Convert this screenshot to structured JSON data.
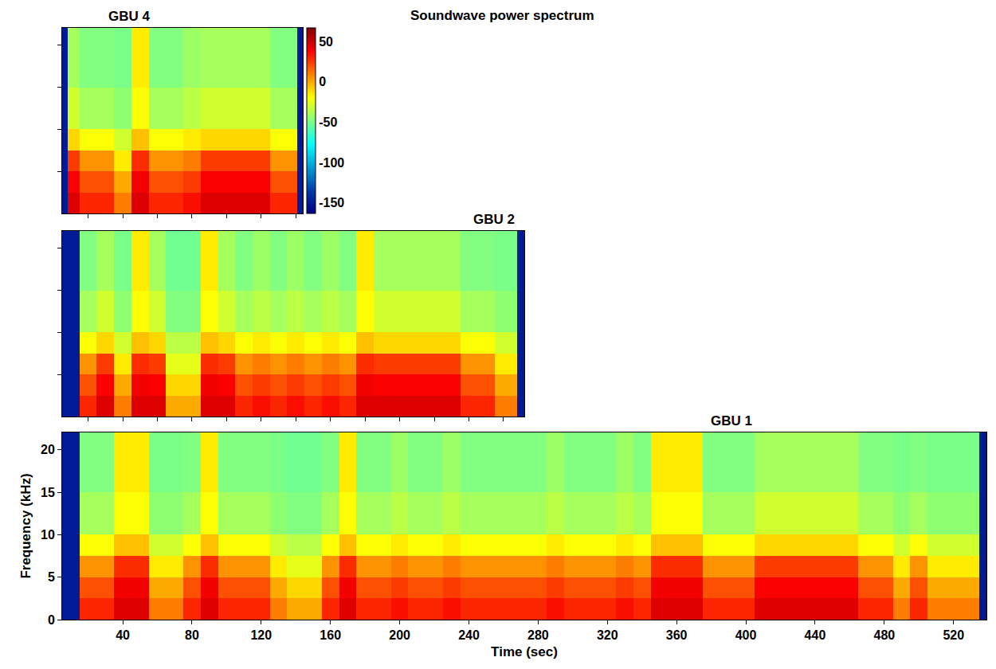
{
  "title": "Soundwave power spectrum",
  "chart_data": [
    {
      "type": "heatmap",
      "title": "GBU 4",
      "xlim": [
        5,
        144
      ],
      "ylim": [
        0,
        22.05
      ],
      "xticks": [
        20,
        40,
        60,
        80,
        100,
        120,
        140
      ],
      "yticks": [
        5,
        10,
        15,
        20
      ],
      "tick_labels": false,
      "grid": false,
      "colorbar": {
        "range": [
          -163,
          67
        ],
        "ticks": [
          50,
          0,
          -50,
          -100,
          -150
        ]
      },
      "time_edges": [
        5,
        8,
        15,
        25,
        35,
        45,
        55,
        65,
        75,
        85,
        95,
        105,
        115,
        125,
        135,
        141,
        144
      ],
      "frequency_edges": [
        0,
        2.5,
        5,
        7.5,
        10,
        15,
        22.05
      ],
      "cells": [
        [
          -150,
          45,
          30,
          30,
          10,
          45,
          30,
          30,
          35,
          45,
          45,
          45,
          45,
          30,
          30,
          -150
        ],
        [
          -150,
          38,
          20,
          20,
          0,
          40,
          20,
          20,
          25,
          38,
          38,
          38,
          38,
          20,
          20,
          -150
        ],
        [
          -150,
          25,
          5,
          5,
          -15,
          28,
          5,
          5,
          10,
          25,
          25,
          25,
          25,
          5,
          5,
          -150
        ],
        [
          -150,
          -10,
          -20,
          -20,
          -30,
          -5,
          -20,
          -20,
          -15,
          -10,
          -10,
          -10,
          -10,
          -20,
          -20,
          -150
        ],
        [
          -150,
          -30,
          -40,
          -40,
          -45,
          -20,
          -40,
          -40,
          -35,
          -30,
          -30,
          -30,
          -30,
          -40,
          -40,
          -150
        ],
        [
          -150,
          -40,
          -48,
          -48,
          -50,
          -15,
          -48,
          -48,
          -42,
          -40,
          -40,
          -40,
          -40,
          -48,
          -48,
          -150
        ]
      ]
    },
    {
      "type": "heatmap",
      "title": "GBU 2",
      "xlim": [
        5,
        272
      ],
      "ylim": [
        0,
        22.05
      ],
      "xticks": [
        20,
        40,
        60,
        80,
        100,
        120,
        140,
        160,
        180,
        200,
        220,
        240,
        260
      ],
      "yticks": [
        5,
        10,
        15,
        20
      ],
      "tick_labels": false,
      "grid": false,
      "time_edges": [
        5,
        15,
        25,
        35,
        45,
        55,
        65,
        75,
        85,
        95,
        105,
        115,
        125,
        135,
        145,
        155,
        165,
        175,
        185,
        195,
        205,
        215,
        225,
        235,
        245,
        255,
        265,
        268,
        272
      ],
      "frequency_edges": [
        0,
        2.5,
        5,
        7.5,
        10,
        15,
        22.05
      ],
      "cells": [
        [
          -150,
          30,
          45,
          10,
          45,
          45,
          0,
          0,
          45,
          45,
          30,
          35,
          30,
          35,
          30,
          35,
          30,
          45,
          45,
          45,
          45,
          45,
          45,
          30,
          30,
          10,
          10,
          -150
        ],
        [
          -150,
          20,
          38,
          0,
          40,
          38,
          -10,
          -10,
          40,
          38,
          20,
          25,
          20,
          25,
          20,
          25,
          20,
          40,
          38,
          38,
          38,
          38,
          38,
          20,
          20,
          0,
          0,
          -150
        ],
        [
          -150,
          5,
          25,
          -15,
          28,
          25,
          -25,
          -25,
          28,
          25,
          5,
          10,
          5,
          10,
          5,
          10,
          5,
          28,
          25,
          25,
          25,
          25,
          25,
          5,
          5,
          -15,
          -15,
          -150
        ],
        [
          -150,
          -20,
          -10,
          -30,
          -5,
          -10,
          -35,
          -35,
          -5,
          -10,
          -20,
          -15,
          -20,
          -15,
          -20,
          -15,
          -20,
          -5,
          -10,
          -10,
          -10,
          -10,
          -10,
          -20,
          -20,
          -30,
          -30,
          -150
        ],
        [
          -150,
          -40,
          -30,
          -45,
          -20,
          -30,
          -48,
          -48,
          -20,
          -30,
          -40,
          -35,
          -40,
          -35,
          -40,
          -35,
          -40,
          -20,
          -30,
          -30,
          -30,
          -30,
          -30,
          -40,
          -40,
          -45,
          -45,
          -150
        ],
        [
          -150,
          -48,
          -40,
          -50,
          -15,
          -40,
          -52,
          -52,
          -15,
          -40,
          -48,
          -42,
          -48,
          -42,
          -48,
          -42,
          -48,
          -15,
          -40,
          -40,
          -40,
          -40,
          -40,
          -48,
          -48,
          -50,
          -50,
          -150
        ]
      ]
    },
    {
      "type": "heatmap",
      "title": "GBU 1",
      "xlabel": "Time (sec)",
      "ylabel": "Frequency (kHz)",
      "xlim": [
        5,
        539
      ],
      "ylim": [
        0,
        22.05
      ],
      "xticks": [
        40,
        80,
        120,
        160,
        200,
        240,
        280,
        320,
        360,
        400,
        440,
        480,
        520
      ],
      "yticks": [
        0,
        5,
        10,
        15,
        20
      ],
      "grid": false,
      "time_edges": [
        5,
        15,
        25,
        35,
        45,
        55,
        65,
        75,
        85,
        95,
        105,
        115,
        125,
        135,
        145,
        155,
        165,
        175,
        185,
        195,
        205,
        215,
        225,
        235,
        245,
        255,
        265,
        275,
        285,
        295,
        305,
        315,
        325,
        335,
        345,
        355,
        365,
        375,
        385,
        395,
        405,
        415,
        425,
        435,
        445,
        455,
        465,
        475,
        485,
        495,
        505,
        515,
        525,
        535,
        539
      ],
      "frequency_edges": [
        0,
        2.5,
        5,
        7.5,
        10,
        15,
        22.05
      ],
      "cells": [
        [
          -150,
          30,
          30,
          45,
          45,
          10,
          10,
          30,
          45,
          30,
          30,
          30,
          10,
          0,
          0,
          30,
          45,
          30,
          30,
          35,
          30,
          30,
          35,
          30,
          30,
          30,
          30,
          30,
          35,
          30,
          30,
          30,
          35,
          30,
          45,
          45,
          45,
          30,
          30,
          30,
          45,
          45,
          45,
          45,
          45,
          45,
          30,
          30,
          10,
          30,
          10,
          10,
          10,
          -150
        ],
        [
          -150,
          20,
          20,
          40,
          40,
          0,
          0,
          20,
          40,
          20,
          20,
          20,
          0,
          -10,
          -10,
          20,
          40,
          20,
          20,
          25,
          20,
          20,
          25,
          20,
          20,
          20,
          20,
          20,
          25,
          20,
          20,
          20,
          25,
          20,
          40,
          40,
          40,
          20,
          20,
          20,
          38,
          38,
          38,
          38,
          38,
          38,
          20,
          20,
          0,
          20,
          0,
          0,
          0,
          -150
        ],
        [
          -150,
          5,
          5,
          28,
          28,
          -15,
          -15,
          5,
          28,
          5,
          5,
          5,
          -15,
          -25,
          -25,
          5,
          28,
          5,
          5,
          10,
          5,
          5,
          10,
          5,
          5,
          5,
          5,
          5,
          10,
          5,
          5,
          5,
          10,
          5,
          28,
          28,
          28,
          5,
          5,
          5,
          25,
          25,
          25,
          25,
          25,
          25,
          5,
          5,
          -15,
          5,
          -15,
          -15,
          -15,
          -150
        ],
        [
          -150,
          -20,
          -20,
          -5,
          -5,
          -30,
          -30,
          -20,
          -5,
          -20,
          -20,
          -20,
          -30,
          -35,
          -35,
          -20,
          -5,
          -20,
          -20,
          -15,
          -20,
          -20,
          -15,
          -20,
          -20,
          -20,
          -20,
          -20,
          -15,
          -20,
          -20,
          -20,
          -15,
          -20,
          -5,
          -5,
          -5,
          -20,
          -20,
          -20,
          -10,
          -10,
          -10,
          -10,
          -10,
          -10,
          -20,
          -20,
          -30,
          -20,
          -30,
          -30,
          -30,
          -150
        ],
        [
          -150,
          -40,
          -40,
          -20,
          -20,
          -45,
          -45,
          -40,
          -20,
          -40,
          -40,
          -40,
          -45,
          -48,
          -48,
          -40,
          -20,
          -40,
          -40,
          -35,
          -40,
          -40,
          -35,
          -40,
          -40,
          -40,
          -40,
          -40,
          -35,
          -40,
          -40,
          -40,
          -35,
          -40,
          -20,
          -20,
          -20,
          -40,
          -40,
          -40,
          -30,
          -30,
          -30,
          -30,
          -30,
          -30,
          -40,
          -40,
          -45,
          -40,
          -45,
          -45,
          -45,
          -150
        ],
        [
          -150,
          -48,
          -48,
          -15,
          -15,
          -50,
          -50,
          -48,
          -15,
          -48,
          -48,
          -48,
          -50,
          -52,
          -52,
          -48,
          -15,
          -48,
          -48,
          -42,
          -48,
          -48,
          -42,
          -48,
          -48,
          -48,
          -48,
          -48,
          -42,
          -48,
          -48,
          -48,
          -42,
          -48,
          -15,
          -15,
          -15,
          -48,
          -48,
          -48,
          -40,
          -40,
          -40,
          -40,
          -40,
          -40,
          -48,
          -48,
          -50,
          -48,
          -50,
          -50,
          -50,
          -150
        ]
      ]
    }
  ]
}
